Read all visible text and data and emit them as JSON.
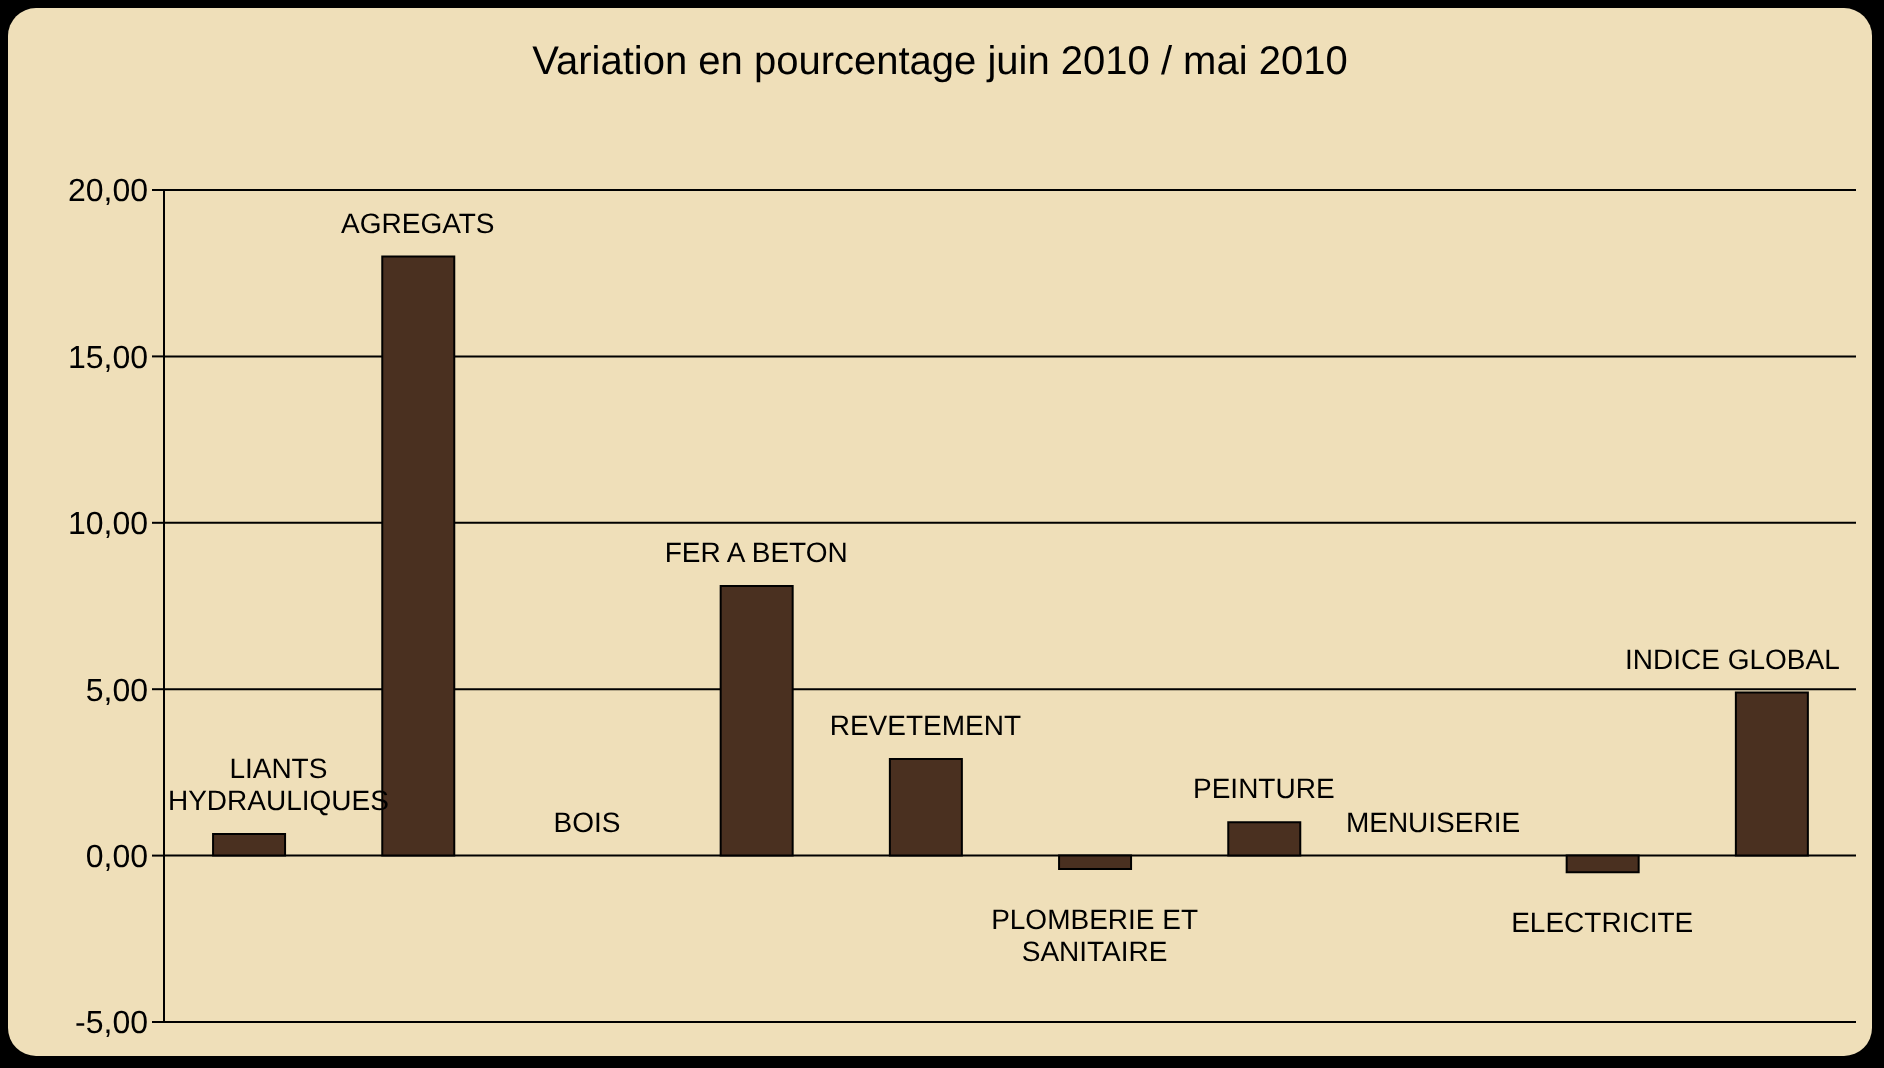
{
  "chart_data": {
    "type": "bar",
    "title": "Variation en pourcentage juin 2010 / mai 2010",
    "categories": [
      "LIANTS HYDRAULIQUES",
      "AGREGATS",
      "BOIS",
      "FER A BETON",
      "REVETEMENT",
      "PLOMBERIE ET SANITAIRE",
      "PEINTURE",
      "MENUISERIE",
      "ELECTRICITE",
      "INDICE GLOBAL"
    ],
    "values": [
      0.65,
      18.0,
      0,
      8.1,
      2.9,
      -0.4,
      1.0,
      0,
      -0.5,
      4.9
    ],
    "color": "#4a3020",
    "ylim": [
      -5,
      20
    ],
    "yticks": [
      {
        "value": -5,
        "label": "-5,00"
      },
      {
        "value": 0,
        "label": "0,00"
      },
      {
        "value": 5,
        "label": "5,00"
      },
      {
        "value": 10,
        "label": "10,00"
      },
      {
        "value": 15,
        "label": "15,00"
      },
      {
        "value": 20,
        "label": "20,00"
      }
    ],
    "grid": "y",
    "legend": false,
    "tick_labels": "y"
  }
}
